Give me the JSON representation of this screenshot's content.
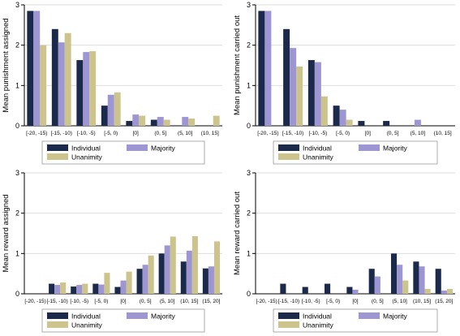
{
  "colors": {
    "Individual": "#1b2a4a",
    "Majority": "#9e96d2",
    "Unanimity": "#cdc38c"
  },
  "chart_data": [
    {
      "type": "bar",
      "ylabel": "Mean punishment assigned",
      "ylim": [
        0,
        3
      ],
      "yticks": [
        "0",
        "1",
        "2",
        "3"
      ],
      "categories": [
        "[-20, -15)",
        "[-15, -10)",
        "[-10, -5)",
        "[-5, 0)",
        "[0]",
        "(0, 5]",
        "(5, 10]",
        "(10, 15]"
      ],
      "series": [
        {
          "name": "Individual",
          "values": [
            2.85,
            2.4,
            1.63,
            0.5,
            0.12,
            0.15,
            0,
            0
          ]
        },
        {
          "name": "Majority",
          "values": [
            2.85,
            2.07,
            1.83,
            0.77,
            0.28,
            0.22,
            0.22,
            0
          ]
        },
        {
          "name": "Unanimity",
          "values": [
            2.0,
            2.3,
            1.85,
            0.83,
            0.25,
            0.15,
            0.18,
            0.25
          ]
        }
      ],
      "legend": {
        "position": "bottom"
      },
      "grid": true
    },
    {
      "type": "bar",
      "ylabel": "Mean punishment carried out",
      "ylim": [
        0,
        3
      ],
      "yticks": [
        "0",
        "1",
        "2",
        "3"
      ],
      "categories": [
        "[-20, -15)",
        "[-15, -10)",
        "[-10, -5)",
        "[-5, 0)",
        "[0]",
        "(0, 5]",
        "(5, 10]",
        "(10, 15]"
      ],
      "series": [
        {
          "name": "Individual",
          "values": [
            2.85,
            2.4,
            1.63,
            0.5,
            0.12,
            0.12,
            0,
            0
          ]
        },
        {
          "name": "Majority",
          "values": [
            2.85,
            1.93,
            1.58,
            0.4,
            0,
            0,
            0.15,
            0
          ]
        },
        {
          "name": "Unanimity",
          "values": [
            0,
            1.47,
            0.73,
            0.15,
            0,
            0,
            0,
            0
          ]
        }
      ],
      "legend": {
        "position": "bottom"
      },
      "grid": true
    },
    {
      "type": "bar",
      "ylabel": "Mean reward assigned",
      "ylim": [
        0,
        3
      ],
      "yticks": [
        "0",
        "1",
        "2",
        "3"
      ],
      "categories": [
        "[-20, -15)",
        "[-15, -10)",
        "[-10, -5)",
        "[-5, 0)",
        "[0]",
        "(0, 5]",
        "(5, 10]",
        "(10, 15]",
        "(15, 20]"
      ],
      "series": [
        {
          "name": "Individual",
          "values": [
            0,
            0.25,
            0.18,
            0.25,
            0.17,
            0.62,
            1.0,
            0.8,
            0.63
          ]
        },
        {
          "name": "Majority",
          "values": [
            0,
            0.22,
            0.22,
            0.23,
            0.33,
            0.72,
            1.2,
            1.07,
            0.68
          ]
        },
        {
          "name": "Unanimity",
          "values": [
            0,
            0.28,
            0.25,
            0.52,
            0.55,
            0.95,
            1.42,
            1.43,
            1.3
          ]
        }
      ],
      "legend": {
        "position": "bottom"
      },
      "grid": true
    },
    {
      "type": "bar",
      "ylabel": "Mean reward carried out",
      "ylim": [
        0,
        3
      ],
      "yticks": [
        "0",
        "1",
        "2",
        "3"
      ],
      "categories": [
        "[-20, -15)",
        "[-15, -10)",
        "[-10, -5)",
        "[-5, 0)",
        "[0]",
        "(0, 5]",
        "(5, 10]",
        "(10, 15]",
        "(15, 20]"
      ],
      "series": [
        {
          "name": "Individual",
          "values": [
            0,
            0.25,
            0.17,
            0.25,
            0.17,
            0.62,
            1.0,
            0.8,
            0.62
          ]
        },
        {
          "name": "Majority",
          "values": [
            0,
            0,
            0,
            0,
            0.1,
            0.43,
            0.72,
            0.68,
            0.08
          ]
        },
        {
          "name": "Unanimity",
          "values": [
            0,
            0,
            0,
            0,
            0,
            0,
            0.33,
            0.12,
            0.12
          ]
        }
      ],
      "legend": {
        "position": "bottom"
      },
      "grid": true
    }
  ]
}
